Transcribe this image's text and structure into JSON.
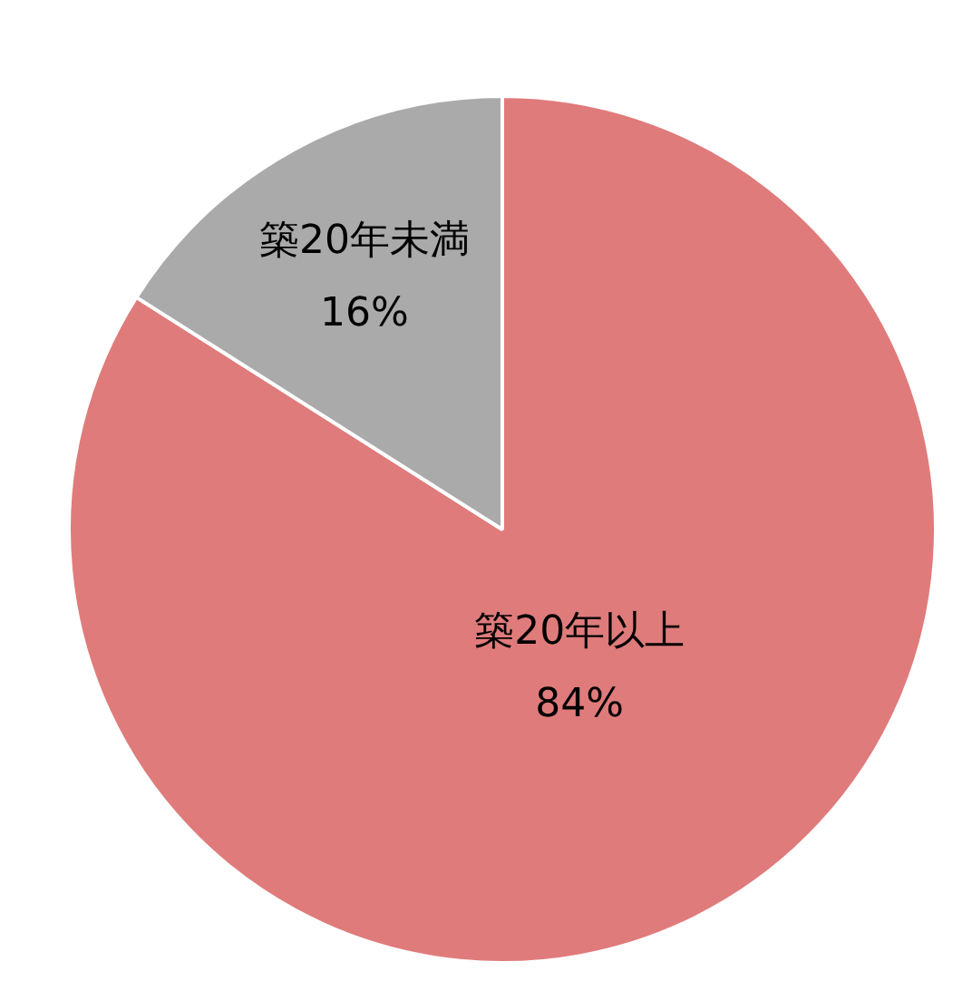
{
  "chart_data": {
    "type": "pie",
    "categories": [
      "築20年以上",
      "築20年未満"
    ],
    "values": [
      84,
      16
    ],
    "value_labels": [
      "84%",
      "16%"
    ],
    "colors": [
      "#e07b7b",
      "#aaaaaa"
    ],
    "legend": false
  }
}
